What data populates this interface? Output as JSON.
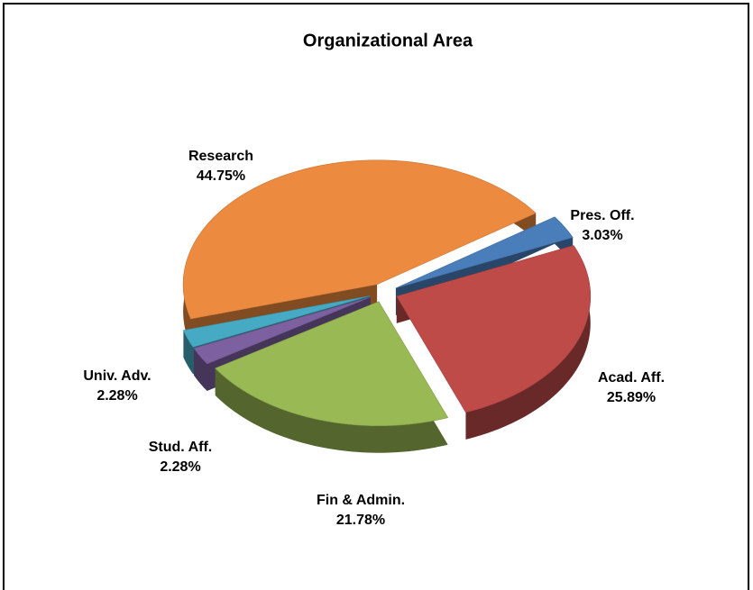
{
  "chart_data": {
    "type": "pie",
    "title": "Organizational Area",
    "categories": [
      "Pres. Off.",
      "Acad. Aff.",
      "Fin & Admin.",
      "Stud. Aff.",
      "Univ. Adv.",
      "Research"
    ],
    "values": [
      3.03,
      25.89,
      21.78,
      2.28,
      2.28,
      44.75
    ],
    "value_labels": [
      "3.03%",
      "25.89%",
      "21.78%",
      "2.28%",
      "2.28%",
      "44.75%"
    ],
    "colors": [
      "#4a7ebb",
      "#be4b48",
      "#98b954",
      "#7d60a0",
      "#46aac5",
      "#ec8a40"
    ]
  }
}
